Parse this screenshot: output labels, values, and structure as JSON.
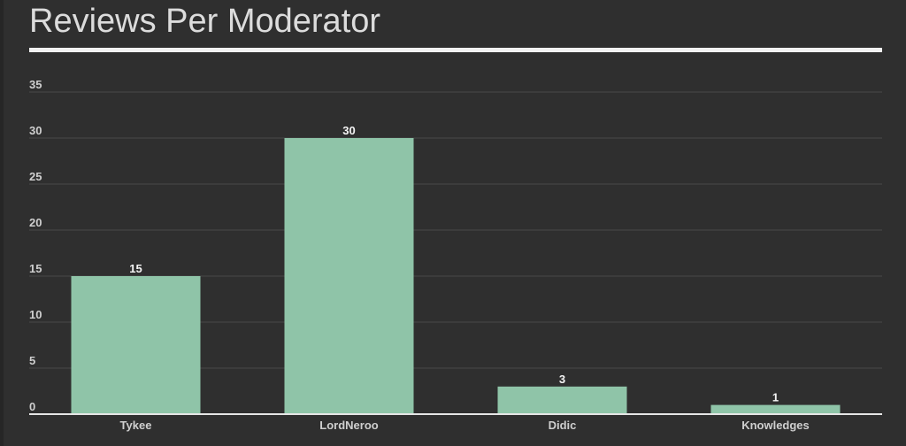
{
  "chart_data": {
    "type": "bar",
    "title": "Reviews Per Moderator",
    "xlabel": "",
    "ylabel": "",
    "categories": [
      "Tykee",
      "LordNeroo",
      "Didic",
      "Knowledges"
    ],
    "values": [
      15,
      30,
      3,
      1
    ],
    "ylim": [
      0,
      35
    ],
    "yticks": [
      "0",
      "5",
      "10",
      "15",
      "20",
      "25",
      "30",
      "35"
    ],
    "grid": true,
    "legend": "none"
  },
  "colors": {
    "background": "#2f2f2f",
    "bar": "#8fc4a8",
    "grid": "#4a4a4a",
    "axis": "#e6e6e6",
    "text": "#cfcfcf"
  }
}
